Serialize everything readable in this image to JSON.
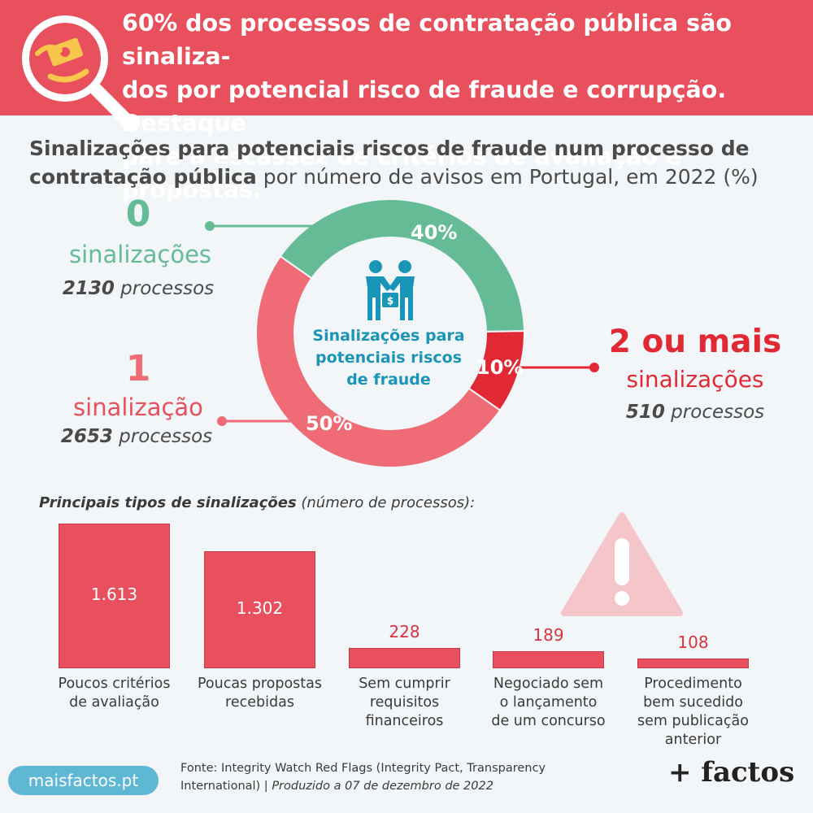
{
  "headline": "60% dos processos de contratação pública são sinaliza-\ndos por potencial risco de fraude e corrupção. Destaque\npara a escassez de critérios de avaliação e propostas.",
  "subtitle": {
    "bold": "Sinalizações para potenciais riscos de fraude num processo de contratação pública",
    "normal": " por número de avisos em Portugal, em 2022 (%)"
  },
  "donut": {
    "center_label": "Sinalizações para potenciais riscos de fraude",
    "segments": [
      {
        "number": "0",
        "label": "sinalizações",
        "count": "2130",
        "count_suffix": " processos",
        "percent": 40,
        "percent_label": "40%",
        "color": "#66bb97"
      },
      {
        "number": "1",
        "label": "sinalização",
        "count": "2653",
        "count_suffix": " processos",
        "percent": 50,
        "percent_label": "50%",
        "color": "#ef6b76"
      },
      {
        "number": "2 ou mais",
        "label": "sinalizações",
        "count": "510",
        "count_suffix": " processos",
        "percent": 10,
        "percent_label": "10%",
        "color": "#e12935"
      }
    ]
  },
  "chart_data": {
    "type": "bar",
    "title": "Principais tipos de sinalizações",
    "title_suffix": " (número de processos):",
    "categories": [
      "Poucos critérios de avaliação",
      "Poucas propostas recebidas",
      "Sem cumprir requisitos financeiros",
      "Negociado sem o lançamento de um concurso",
      "Procedimento bem sucedido sem publicação anterior"
    ],
    "category_lines": [
      [
        "Poucos critérios",
        "de avaliação"
      ],
      [
        "Poucas propostas",
        "recebidas"
      ],
      [
        "Sem cumprir",
        "requisitos",
        "financeiros"
      ],
      [
        "Negociado sem",
        "o lançamento",
        "de um concurso"
      ],
      [
        "Procedimento",
        "bem sucedido",
        "sem publicação",
        "anterior"
      ]
    ],
    "values": [
      1613,
      1302,
      228,
      189,
      108
    ],
    "value_labels": [
      "1.613",
      "1.302",
      "228",
      "189",
      "108"
    ],
    "bar_color": "#e9505d"
  },
  "footer": {
    "source_line1": "Fonte: Integrity Watch Red Flags (Integrity Pact, Transparency",
    "source_line2": "International) | ",
    "produced": "Produzido a 07 de dezembro de 2022",
    "site": "maisfactos.pt",
    "brand": "+ factos"
  },
  "icons": [
    "magnifier-money-icon",
    "handshake-money-icon",
    "warning-triangle-icon"
  ]
}
